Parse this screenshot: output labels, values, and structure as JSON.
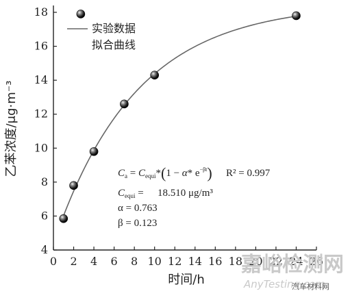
{
  "chart_data": {
    "type": "scatter",
    "xlabel": "时间/h",
    "ylabel": "乙苯浓度/μg·m⁻³",
    "xlim": [
      0,
      26
    ],
    "ylim": [
      4,
      18
    ],
    "xticks": [
      0,
      2,
      4,
      6,
      8,
      10,
      12,
      14,
      16,
      18,
      20,
      22,
      24,
      26
    ],
    "yticks": [
      4,
      6,
      8,
      10,
      12,
      14,
      16,
      18
    ],
    "legend": {
      "placement": "top-left",
      "entries": [
        "实验数据",
        "拟合曲线"
      ]
    },
    "series": [
      {
        "name": "实验数据",
        "type": "scatter",
        "x": [
          1,
          2,
          4,
          7,
          10,
          24
        ],
        "y": [
          5.85,
          7.8,
          9.8,
          12.6,
          14.3,
          17.8
        ]
      },
      {
        "name": "拟合曲线",
        "type": "line",
        "model": "C = Cequi*(1 - alpha*e^(-beta*t))",
        "params": {
          "Cequi": 18.51,
          "alpha": 0.763,
          "beta": 0.123
        },
        "x_range": [
          1,
          24
        ]
      }
    ],
    "annotations": {
      "r2": "R² = 0.997",
      "cequi": "18.510 μg/m³",
      "alpha": "α = 0.763",
      "beta": "β = 0.123"
    }
  },
  "watermark": {
    "cn": "嘉峪检测网",
    "en": "AnyTesting.com",
    "brand": "汽车材料网"
  },
  "colors": {
    "curve": "#666666",
    "axis": "#222222",
    "marker_dark": "#111111",
    "watermark": "#c9c9c9"
  }
}
